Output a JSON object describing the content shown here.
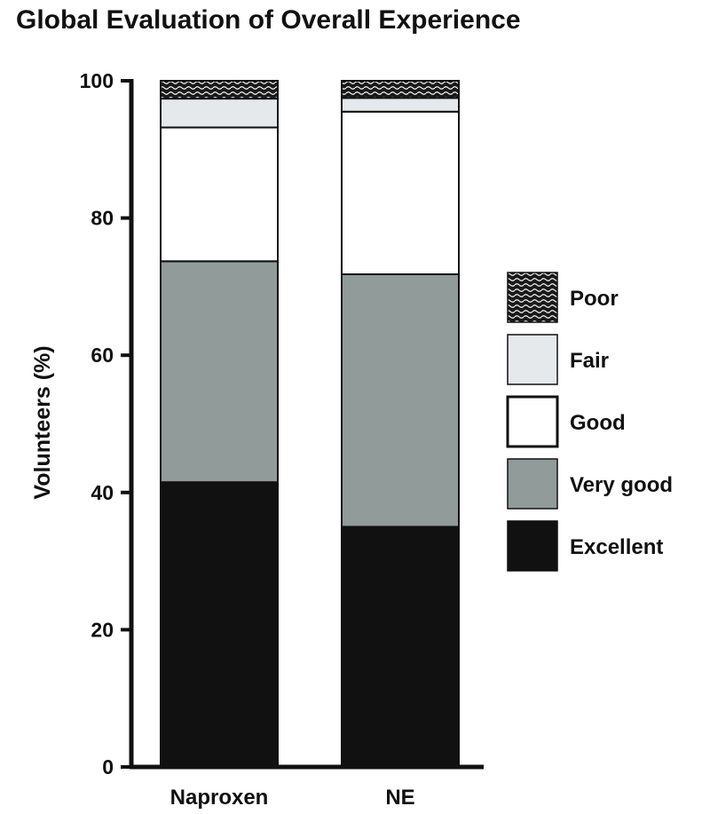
{
  "chart_data": {
    "type": "bar",
    "stacked": true,
    "title": "Global Evaluation of Overall Experience",
    "xlabel": "",
    "ylabel": "Volunteers (%)",
    "ylim": [
      0,
      100
    ],
    "yticks": [
      "0",
      "20",
      "40",
      "60",
      "80",
      "100"
    ],
    "categories": [
      "Naproxen",
      "NE"
    ],
    "series": [
      {
        "name": "Excellent",
        "values": [
          41.5,
          35.0
        ],
        "color": "#111111",
        "pattern": "solid"
      },
      {
        "name": "Very good",
        "values": [
          32.2,
          36.8
        ],
        "color": "#919b99",
        "pattern": "solid"
      },
      {
        "name": "Good",
        "values": [
          19.5,
          23.7
        ],
        "color": "#ffffff",
        "pattern": "solid"
      },
      {
        "name": "Fair",
        "values": [
          4.2,
          2.0
        ],
        "color": "#e6e9ec",
        "pattern": "solid"
      },
      {
        "name": "Poor",
        "values": [
          2.6,
          2.5
        ],
        "color": "#1a1a1a",
        "pattern": "wavy-hatch"
      }
    ],
    "legend_order": [
      "Poor",
      "Fair",
      "Good",
      "Very good",
      "Excellent"
    ],
    "legend_position": "right",
    "grid": false
  }
}
